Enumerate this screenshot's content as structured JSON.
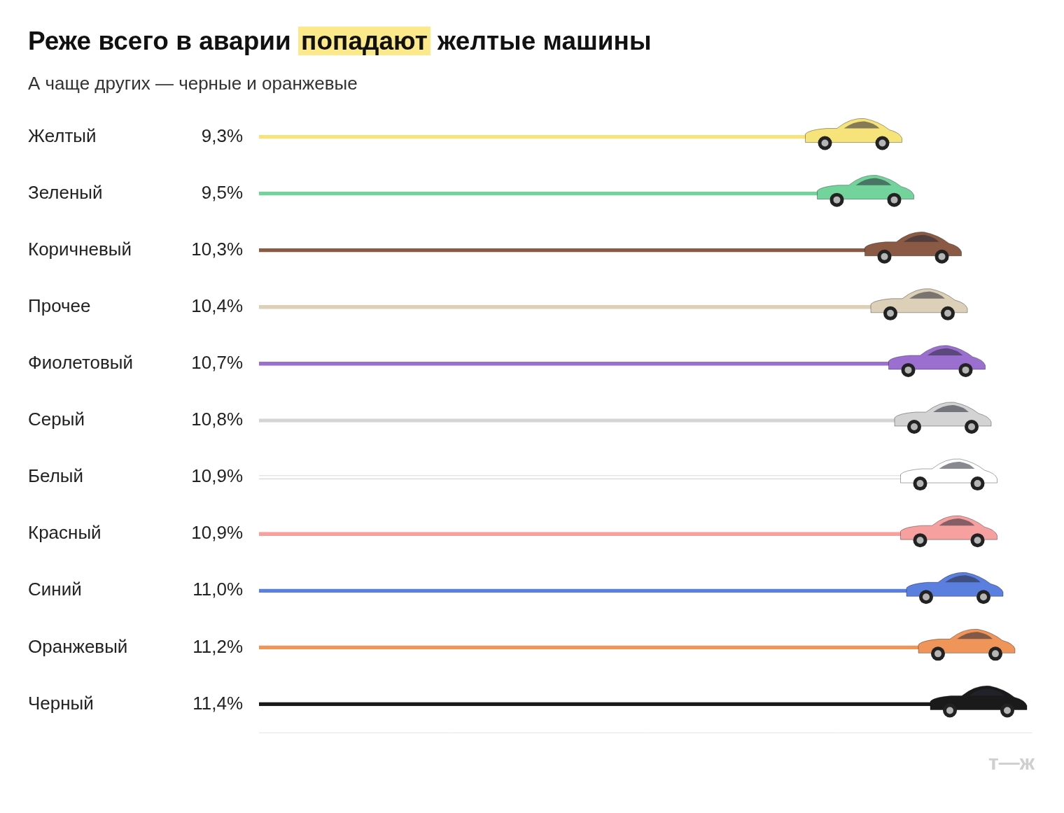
{
  "chart_data": {
    "type": "bar",
    "orientation": "horizontal",
    "title": "Реже всего в аварии попадают желтые машины",
    "subtitle": "А чаще других — черные и оранжевые",
    "categories": [
      "Желтый",
      "Зеленый",
      "Коричневый",
      "Прочее",
      "Фиолетовый",
      "Серый",
      "Белый",
      "Красный",
      "Синий",
      "Оранжевый",
      "Черный"
    ],
    "values": [
      9.3,
      9.5,
      10.3,
      10.4,
      10.7,
      10.8,
      10.9,
      10.9,
      11.0,
      11.2,
      11.4
    ],
    "value_labels": [
      "9,3%",
      "9,5%",
      "10,3%",
      "10,4%",
      "10,7%",
      "10,8%",
      "10,9%",
      "10,9%",
      "11,0%",
      "11,2%",
      "11,4%"
    ],
    "colors": [
      "#f6e37a",
      "#72d39b",
      "#8a5a44",
      "#ddd0b8",
      "#9b6fd0",
      "#d3d3d3",
      "#ffffff",
      "#f6a0a0",
      "#5b7fde",
      "#f0955a",
      "#1a1a1a"
    ],
    "xlim": [
      0,
      13
    ],
    "tick_labels": false,
    "grid": false,
    "data_labels": true,
    "annotations": [
      "т—ж"
    ]
  }
}
